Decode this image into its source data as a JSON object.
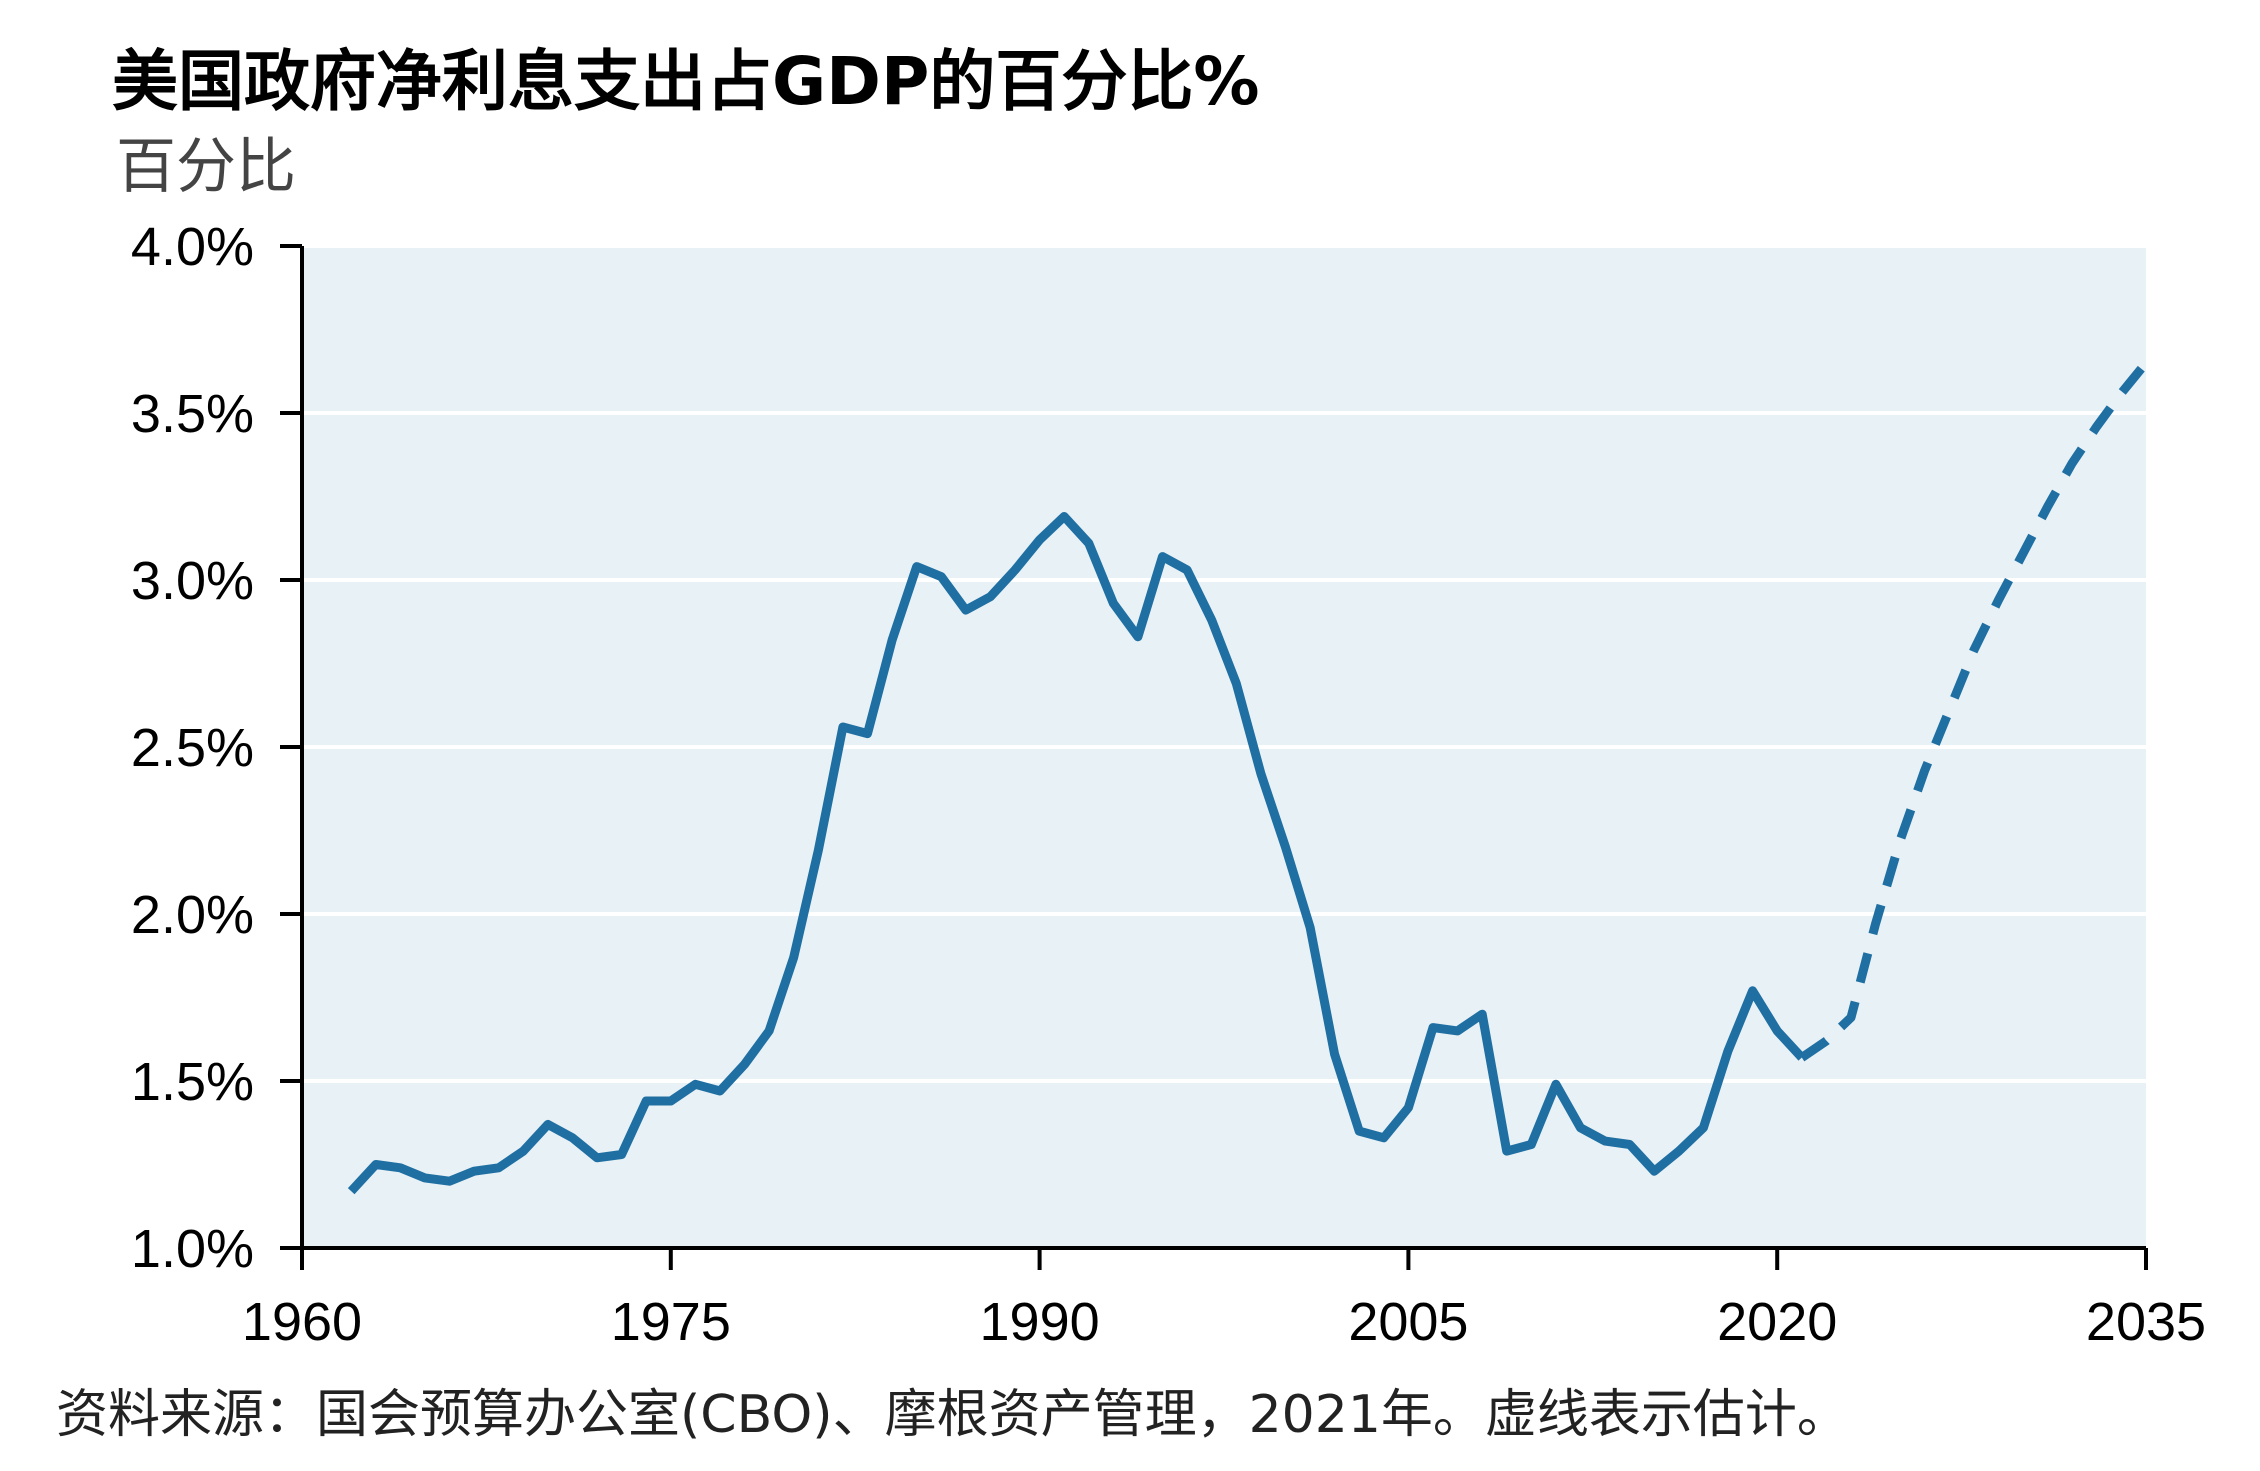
{
  "chart_data": {
    "type": "line",
    "title": "美国政府净利息支出占GDP的百分比%",
    "subtitle": "百分比",
    "source": "资料来源：国会预算办公室(CBO)、摩根资产管理，2021年。虚线表示估计。",
    "ylim": [
      1.0,
      4.0
    ],
    "xlim": [
      1960,
      2035
    ],
    "y_ticks": [
      "4.0%",
      "3.5%",
      "3.0%",
      "2.5%",
      "2.0%",
      "1.5%",
      "1.0%"
    ],
    "y_tick_values": [
      4.0,
      3.5,
      3.0,
      2.5,
      2.0,
      1.5,
      1.0
    ],
    "x_ticks": [
      "1960",
      "1975",
      "1990",
      "2005",
      "2020",
      "2035"
    ],
    "x_tick_values": [
      1960,
      1975,
      1990,
      2005,
      2020,
      2035
    ],
    "grid": true,
    "colors": {
      "line": "#1f6fa3",
      "plot_bg": "#e8f1f5",
      "grid": "#ffffff"
    },
    "series": [
      {
        "style": "solid",
        "x": [
          1962,
          1963,
          1964,
          1965,
          1966,
          1967,
          1968,
          1969,
          1970,
          1971,
          1972,
          1973,
          1974,
          1975,
          1976,
          1977,
          1978,
          1979,
          1980,
          1981,
          1982,
          1983,
          1984,
          1985,
          1986,
          1987,
          1988,
          1989,
          1990,
          1991,
          1992,
          1993,
          1994,
          1995,
          1996,
          1997,
          1998,
          1999,
          2000,
          2001,
          2002,
          2003,
          2004,
          2005,
          2006,
          2007,
          2008,
          2009,
          2010,
          2011,
          2012,
          2013,
          2014,
          2015,
          2016,
          2017,
          2018,
          2019,
          2020,
          2021
        ],
        "values": [
          1.17,
          1.25,
          1.24,
          1.21,
          1.2,
          1.23,
          1.24,
          1.29,
          1.37,
          1.33,
          1.27,
          1.28,
          1.44,
          1.44,
          1.49,
          1.47,
          1.55,
          1.65,
          1.87,
          2.19,
          2.56,
          2.54,
          2.82,
          3.04,
          3.01,
          2.91,
          2.95,
          3.03,
          3.12,
          3.19,
          3.11,
          2.93,
          2.83,
          3.07,
          3.03,
          2.88,
          2.69,
          2.42,
          2.2,
          1.96,
          1.58,
          1.35,
          1.33,
          1.42,
          1.66,
          1.65,
          1.7,
          1.29,
          1.31,
          1.49,
          1.36,
          1.32,
          1.31,
          1.23,
          1.29,
          1.36,
          1.59,
          1.77,
          1.65,
          1.57
        ]
      },
      {
        "style": "dashed",
        "x": [
          2021,
          2022,
          2023,
          2024,
          2025,
          2026,
          2027,
          2028,
          2029,
          2030,
          2031,
          2032,
          2033,
          2034,
          2035
        ],
        "values": [
          1.57,
          1.62,
          1.69,
          1.97,
          2.22,
          2.43,
          2.61,
          2.79,
          2.94,
          3.08,
          3.22,
          3.35,
          3.46,
          3.56,
          3.65
        ]
      }
    ]
  }
}
